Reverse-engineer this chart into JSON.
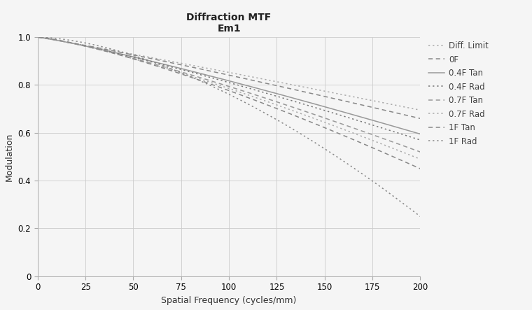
{
  "title_line1": "Diffraction MTF",
  "title_line2": "Em1",
  "xlabel": "Spatial Frequency (cycles/mm)",
  "ylabel": "Modulation",
  "xlim": [
    0,
    200
  ],
  "ylim": [
    0,
    1
  ],
  "xticks": [
    0,
    25,
    50,
    75,
    100,
    125,
    150,
    175,
    200
  ],
  "yticks": [
    0,
    0.2,
    0.4,
    0.6,
    0.8,
    1.0
  ],
  "background_color": "#f5f5f5",
  "grid_color": "#cccccc",
  "curves": [
    {
      "label": "Diff. Limit",
      "linestyle": "dotted",
      "color": "#aaaaaa",
      "end_val": 0.695,
      "power": 1.05
    },
    {
      "label": "0F",
      "linestyle": "dashed_short",
      "color": "#888888",
      "end_val": 0.66,
      "power": 1.1
    },
    {
      "label": "0.4F Tan",
      "linestyle": "solid",
      "color": "#999999",
      "end_val": 0.595,
      "power": 1.15
    },
    {
      "label": "0.4F Rad",
      "linestyle": "dotted",
      "color": "#777777",
      "end_val": 0.57,
      "power": 1.18
    },
    {
      "label": "0.7F Tan",
      "linestyle": "dashed_short",
      "color": "#999999",
      "end_val": 0.52,
      "power": 1.22
    },
    {
      "label": "0.7F Rad",
      "linestyle": "dotted",
      "color": "#aaaaaa",
      "end_val": 0.49,
      "power": 1.25
    },
    {
      "label": "1F Tan",
      "linestyle": "dashed_short",
      "color": "#888888",
      "end_val": 0.45,
      "power": 1.3
    },
    {
      "label": "1F Rad",
      "linestyle": "dotted",
      "color": "#888888",
      "end_val": 0.25,
      "power": 1.65
    }
  ]
}
